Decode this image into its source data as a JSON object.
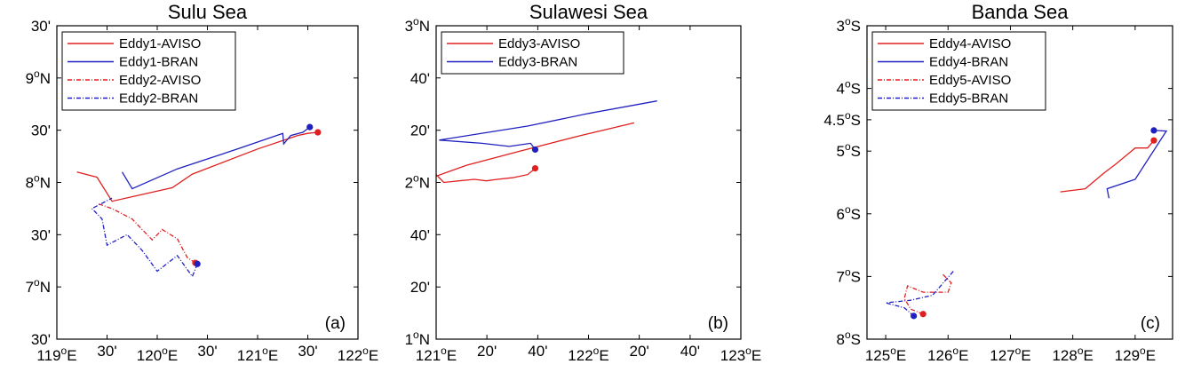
{
  "chart_data": [
    {
      "type": "line",
      "title": "Sulu Sea",
      "panel_label": "(a)",
      "xlim": [
        119,
        122
      ],
      "ylim": [
        6.5,
        9.5
      ],
      "xticks": [
        {
          "v": 119,
          "deg": "119",
          "sup": "o",
          "suf": "E"
        },
        {
          "v": 119.5,
          "deg": "30'",
          "sup": "",
          "suf": ""
        },
        {
          "v": 120,
          "deg": "120",
          "sup": "o",
          "suf": "E"
        },
        {
          "v": 120.5,
          "deg": "30'",
          "sup": "",
          "suf": ""
        },
        {
          "v": 121,
          "deg": "121",
          "sup": "o",
          "suf": "E"
        },
        {
          "v": 121.5,
          "deg": "30'",
          "sup": "",
          "suf": ""
        },
        {
          "v": 122,
          "deg": "122",
          "sup": "o",
          "suf": "E"
        }
      ],
      "yticks": [
        {
          "v": 9.5,
          "deg": "30'",
          "sup": "",
          "suf": ""
        },
        {
          "v": 9,
          "deg": "9",
          "sup": "o",
          "suf": "N"
        },
        {
          "v": 8.5,
          "deg": "30'",
          "sup": "",
          "suf": ""
        },
        {
          "v": 8,
          "deg": "8",
          "sup": "o",
          "suf": "N"
        },
        {
          "v": 7.5,
          "deg": "30'",
          "sup": "",
          "suf": ""
        },
        {
          "v": 7,
          "deg": "7",
          "sup": "o",
          "suf": "N"
        },
        {
          "v": 6.5,
          "deg": "30'",
          "sup": "",
          "suf": ""
        }
      ],
      "legend_location": "top-left",
      "series": [
        {
          "name": "Eddy1-AVISO",
          "color": "#e02020",
          "dash": "solid",
          "start_marker": [
            121.6,
            8.48
          ],
          "points": [
            [
              121.6,
              8.48
            ],
            [
              121.5,
              8.47
            ],
            [
              121.4,
              8.45
            ],
            [
              121.0,
              8.32
            ],
            [
              120.35,
              8.08
            ],
            [
              120.15,
              7.95
            ],
            [
              119.55,
              7.82
            ],
            [
              119.4,
              8.05
            ],
            [
              119.2,
              8.1
            ]
          ]
        },
        {
          "name": "Eddy1-BRAN",
          "color": "#2020c0",
          "dash": "solid",
          "start_marker": [
            121.52,
            8.53
          ],
          "points": [
            [
              121.52,
              8.53
            ],
            [
              121.45,
              8.48
            ],
            [
              121.33,
              8.45
            ],
            [
              121.26,
              8.37
            ],
            [
              121.25,
              8.47
            ],
            [
              120.8,
              8.32
            ],
            [
              120.2,
              8.13
            ],
            [
              119.75,
              7.94
            ],
            [
              119.65,
              8.1
            ]
          ]
        },
        {
          "name": "Eddy2-AVISO",
          "color": "#e02020",
          "dash": "dashdot",
          "start_marker": [
            120.38,
            7.23
          ],
          "points": [
            [
              120.38,
              7.23
            ],
            [
              120.3,
              7.28
            ],
            [
              120.2,
              7.46
            ],
            [
              120.05,
              7.55
            ],
            [
              119.95,
              7.45
            ],
            [
              119.85,
              7.55
            ],
            [
              119.75,
              7.65
            ],
            [
              119.55,
              7.75
            ],
            [
              119.4,
              7.8
            ]
          ]
        },
        {
          "name": "Eddy2-BRAN",
          "color": "#2020c0",
          "dash": "dashdot",
          "start_marker": [
            120.4,
            7.22
          ],
          "points": [
            [
              120.4,
              7.22
            ],
            [
              120.35,
              7.1
            ],
            [
              120.2,
              7.3
            ],
            [
              120.0,
              7.15
            ],
            [
              119.85,
              7.35
            ],
            [
              119.7,
              7.5
            ],
            [
              119.5,
              7.4
            ],
            [
              119.45,
              7.65
            ],
            [
              119.35,
              7.75
            ],
            [
              119.55,
              7.85
            ]
          ]
        }
      ]
    },
    {
      "type": "line",
      "title": "Sulawesi Sea",
      "panel_label": "(b)",
      "xlim": [
        121,
        123
      ],
      "ylim": [
        1,
        3
      ],
      "xticks": [
        {
          "v": 121,
          "deg": "121",
          "sup": "o",
          "suf": "E"
        },
        {
          "v": 121.333,
          "deg": "20'",
          "sup": "",
          "suf": ""
        },
        {
          "v": 121.667,
          "deg": "40'",
          "sup": "",
          "suf": ""
        },
        {
          "v": 122,
          "deg": "122",
          "sup": "o",
          "suf": "E"
        },
        {
          "v": 122.333,
          "deg": "20'",
          "sup": "",
          "suf": ""
        },
        {
          "v": 122.667,
          "deg": "40'",
          "sup": "",
          "suf": ""
        },
        {
          "v": 123,
          "deg": "123",
          "sup": "o",
          "suf": "E"
        }
      ],
      "yticks": [
        {
          "v": 3,
          "deg": "3",
          "sup": "o",
          "suf": "N"
        },
        {
          "v": 2.667,
          "deg": "40'",
          "sup": "",
          "suf": ""
        },
        {
          "v": 2.333,
          "deg": "20'",
          "sup": "",
          "suf": ""
        },
        {
          "v": 2,
          "deg": "2",
          "sup": "o",
          "suf": "N"
        },
        {
          "v": 1.667,
          "deg": "40'",
          "sup": "",
          "suf": ""
        },
        {
          "v": 1.333,
          "deg": "20'",
          "sup": "",
          "suf": ""
        },
        {
          "v": 1,
          "deg": "1",
          "sup": "o",
          "suf": "N"
        }
      ],
      "legend_location": "top-left",
      "series": [
        {
          "name": "Eddy3-AVISO",
          "color": "#e02020",
          "dash": "solid",
          "start_marker": [
            121.65,
            2.09
          ],
          "points": [
            [
              121.65,
              2.09
            ],
            [
              121.6,
              2.05
            ],
            [
              121.5,
              2.03
            ],
            [
              121.4,
              2.02
            ],
            [
              121.33,
              2.01
            ],
            [
              121.25,
              2.02
            ],
            [
              121.15,
              2.01
            ],
            [
              121.05,
              2.0
            ],
            [
              121.0,
              2.05
            ],
            [
              121.0,
              2.04
            ],
            [
              121.2,
              2.11
            ],
            [
              121.55,
              2.2
            ],
            [
              121.95,
              2.3
            ],
            [
              122.3,
              2.38
            ]
          ]
        },
        {
          "name": "Eddy3-BRAN",
          "color": "#2020c0",
          "dash": "solid",
          "start_marker": [
            121.65,
            2.21
          ],
          "points": [
            [
              121.65,
              2.21
            ],
            [
              121.62,
              2.25
            ],
            [
              121.48,
              2.23
            ],
            [
              121.3,
              2.25
            ],
            [
              121.02,
              2.27
            ],
            [
              121.6,
              2.36
            ],
            [
              122.0,
              2.44
            ],
            [
              122.45,
              2.52
            ]
          ]
        }
      ]
    },
    {
      "type": "line",
      "title": "Banda Sea",
      "panel_label": "(c)",
      "xlim": [
        124.7,
        129.6
      ],
      "ylim": [
        -8,
        -3
      ],
      "xticks": [
        {
          "v": 125,
          "deg": "125",
          "sup": "o",
          "suf": "E"
        },
        {
          "v": 126,
          "deg": "126",
          "sup": "o",
          "suf": "E"
        },
        {
          "v": 127,
          "deg": "127",
          "sup": "o",
          "suf": "E"
        },
        {
          "v": 128,
          "deg": "128",
          "sup": "o",
          "suf": "E"
        },
        {
          "v": 129,
          "deg": "129",
          "sup": "o",
          "suf": "E"
        }
      ],
      "yticks": [
        {
          "v": -3,
          "deg": "3",
          "sup": "o",
          "suf": "S"
        },
        {
          "v": -4,
          "deg": "4",
          "sup": "o",
          "suf": "S"
        },
        {
          "v": -4.5,
          "deg": "4.5",
          "sup": "o",
          "suf": "S"
        },
        {
          "v": -5,
          "deg": "5",
          "sup": "o",
          "suf": "S"
        },
        {
          "v": -6,
          "deg": "6",
          "sup": "o",
          "suf": "S"
        },
        {
          "v": -7,
          "deg": "7",
          "sup": "o",
          "suf": "S"
        },
        {
          "v": -8,
          "deg": "8",
          "sup": "o",
          "suf": "S"
        }
      ],
      "legend_location": "top-left",
      "series": [
        {
          "name": "Eddy4-AVISO",
          "color": "#e02020",
          "dash": "solid",
          "start_marker": [
            129.3,
            -4.83
          ],
          "points": [
            [
              129.3,
              -4.83
            ],
            [
              129.2,
              -4.95
            ],
            [
              129.0,
              -4.95
            ],
            [
              128.7,
              -5.2
            ],
            [
              128.5,
              -5.35
            ],
            [
              128.2,
              -5.6
            ],
            [
              127.8,
              -5.65
            ]
          ]
        },
        {
          "name": "Eddy4-BRAN",
          "color": "#2020c0",
          "dash": "solid",
          "start_marker": [
            129.3,
            -4.67
          ],
          "points": [
            [
              129.3,
              -4.67
            ],
            [
              129.5,
              -4.68
            ],
            [
              129.0,
              -5.45
            ],
            [
              128.55,
              -5.6
            ],
            [
              128.58,
              -5.75
            ]
          ]
        },
        {
          "name": "Eddy5-AVISO",
          "color": "#e02020",
          "dash": "dashdot",
          "start_marker": [
            125.6,
            -7.6
          ],
          "points": [
            [
              125.6,
              -7.6
            ],
            [
              125.4,
              -7.52
            ],
            [
              125.3,
              -7.35
            ],
            [
              125.35,
              -7.15
            ],
            [
              125.6,
              -7.25
            ],
            [
              126.0,
              -7.25
            ],
            [
              126.05,
              -7.1
            ],
            [
              125.9,
              -6.95
            ]
          ]
        },
        {
          "name": "Eddy5-BRAN",
          "color": "#2020c0",
          "dash": "dashdot",
          "start_marker": [
            125.45,
            -7.63
          ],
          "points": [
            [
              125.45,
              -7.63
            ],
            [
              125.3,
              -7.5
            ],
            [
              125.0,
              -7.42
            ],
            [
              125.4,
              -7.38
            ],
            [
              125.75,
              -7.3
            ],
            [
              126.1,
              -6.9
            ]
          ]
        }
      ]
    }
  ]
}
